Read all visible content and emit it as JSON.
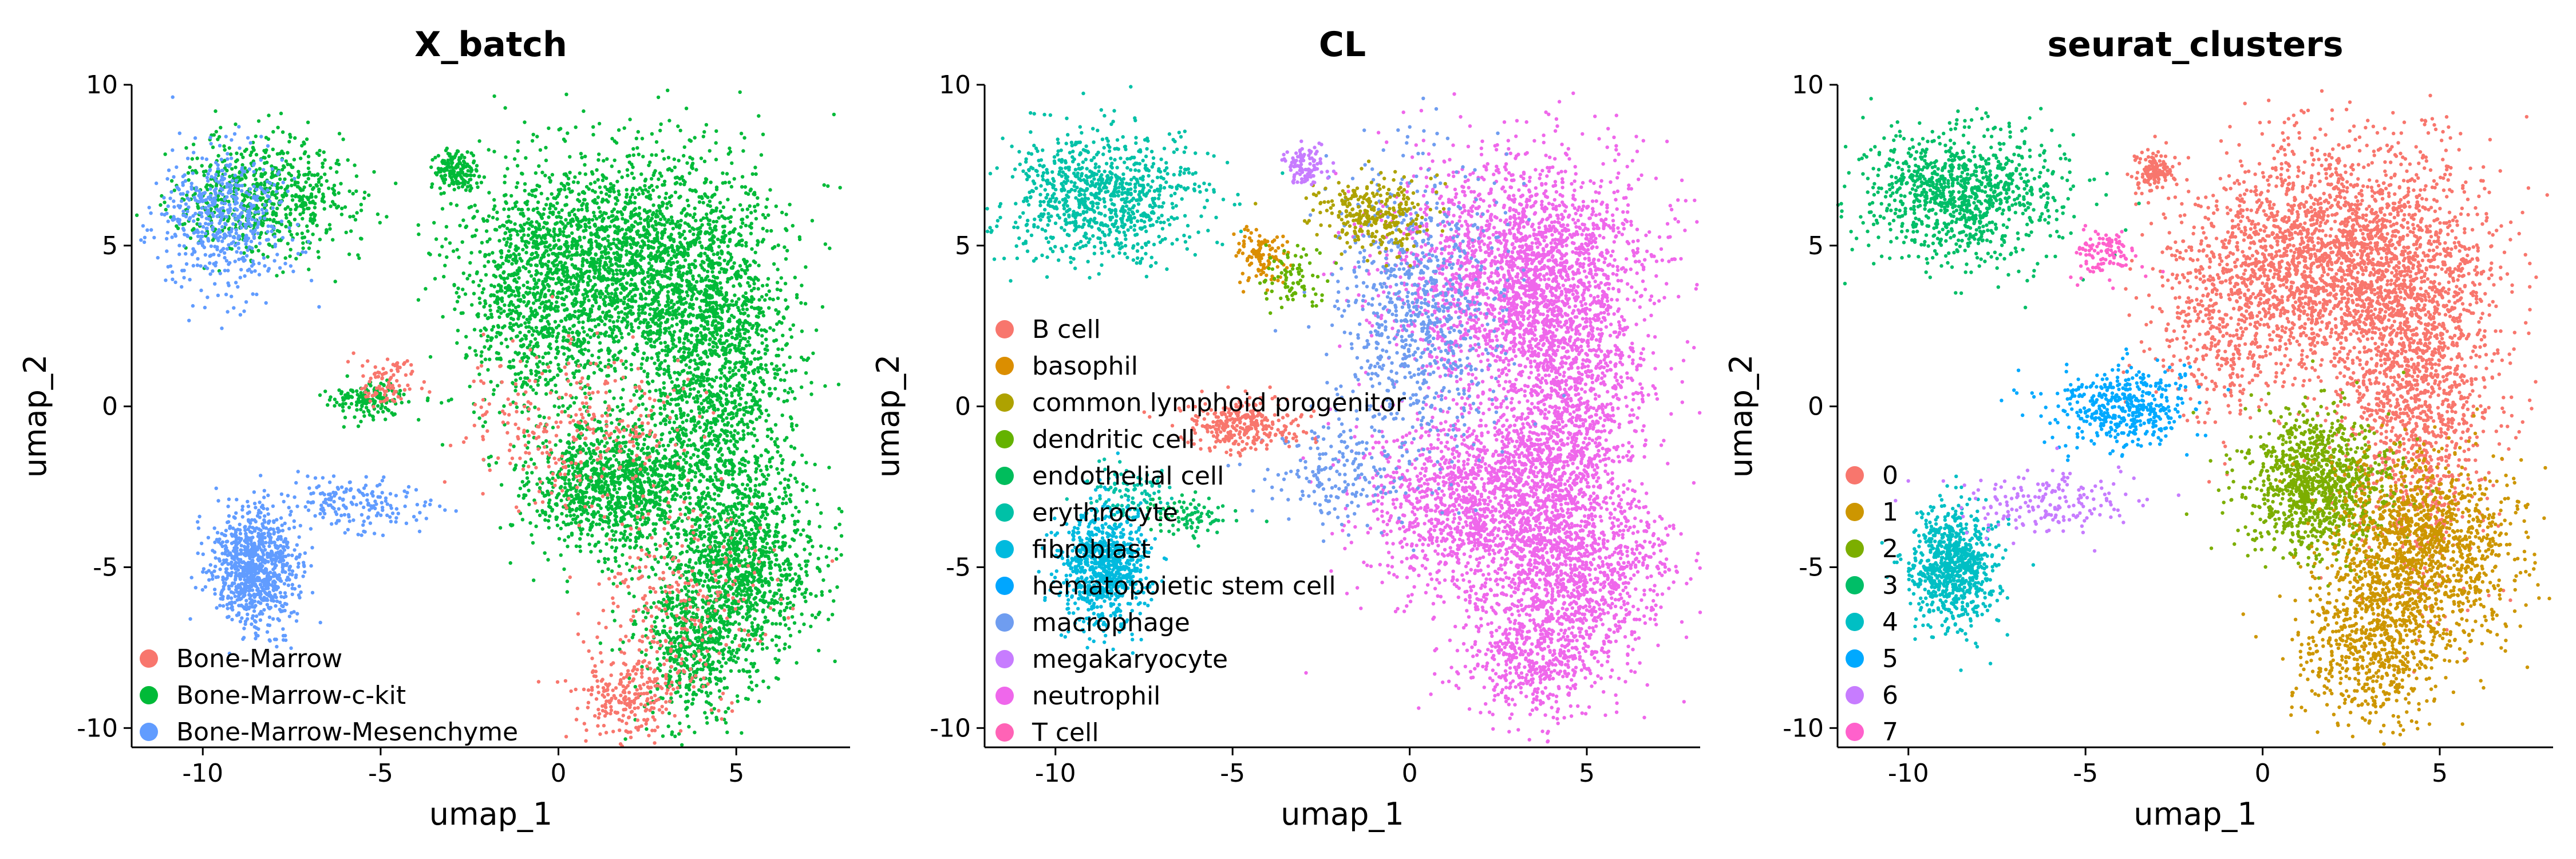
{
  "chart_data": [
    {
      "type": "scatter",
      "title": "X_batch",
      "xlabel": "umap_1",
      "ylabel": "umap_2",
      "xlim": [
        -12,
        8.2
      ],
      "ylim": [
        -10.6,
        10
      ],
      "xticks": [
        -10,
        -5,
        0,
        5
      ],
      "yticks": [
        -10,
        -5,
        0,
        5,
        10
      ],
      "xtick_labels": [
        "-10",
        "-5",
        "0",
        "5"
      ],
      "ytick_labels": [
        "-10",
        "-5",
        "0",
        "5",
        "10"
      ],
      "grid": false,
      "legend_position": "bottom-left",
      "legend": [
        {
          "name": "Bone-Marrow",
          "color": "#F8766D"
        },
        {
          "name": "Bone-Marrow-c-kit",
          "color": "#00BA38"
        },
        {
          "name": "Bone-Marrow-Mesenchyme",
          "color": "#619CFF"
        }
      ],
      "clusters": [
        {
          "color": "#00BA38",
          "x": 1.5,
          "y": 4.5,
          "sx": 2.0,
          "sy": 1.8,
          "n": 2200
        },
        {
          "color": "#00BA38",
          "x": 4.4,
          "y": 1.0,
          "sx": 1.1,
          "sy": 3.0,
          "n": 1700
        },
        {
          "color": "#00BA38",
          "x": 1.5,
          "y": -2.4,
          "sx": 1.2,
          "sy": 1.1,
          "n": 1100
        },
        {
          "color": "#00BA38",
          "x": 5.2,
          "y": -4.8,
          "sx": 1.1,
          "sy": 1.4,
          "n": 1000
        },
        {
          "color": "#00BA38",
          "x": 3.8,
          "y": -7.5,
          "sx": 0.9,
          "sy": 1.1,
          "n": 550
        },
        {
          "color": "#00BA38",
          "x": -0.8,
          "y": 3.0,
          "sx": 1.0,
          "sy": 2.0,
          "n": 500
        },
        {
          "color": "#00BA38",
          "x": -2.9,
          "y": 7.3,
          "sx": 0.3,
          "sy": 0.3,
          "n": 160
        },
        {
          "color": "#00BA38",
          "x": -8.3,
          "y": 6.6,
          "sx": 1.2,
          "sy": 0.9,
          "n": 700
        },
        {
          "color": "#00BA38",
          "x": -5.3,
          "y": 0.2,
          "sx": 0.5,
          "sy": 0.3,
          "n": 160
        },
        {
          "color": "#619CFF",
          "x": -9.5,
          "y": 5.8,
          "sx": 0.9,
          "sy": 1.1,
          "n": 550
        },
        {
          "color": "#619CFF",
          "x": -8.5,
          "y": -5.0,
          "sx": 0.6,
          "sy": 0.9,
          "n": 900
        },
        {
          "color": "#619CFF",
          "x": -5.8,
          "y": -3.0,
          "sx": 1.0,
          "sy": 0.4,
          "n": 180
        },
        {
          "color": "#F8766D",
          "x": 0.5,
          "y": -0.5,
          "sx": 1.5,
          "sy": 1.2,
          "n": 300
        },
        {
          "color": "#F8766D",
          "x": 2.0,
          "y": -9.0,
          "sx": 0.8,
          "sy": 0.7,
          "n": 250
        },
        {
          "color": "#F8766D",
          "x": -4.8,
          "y": 0.8,
          "sx": 0.4,
          "sy": 0.4,
          "n": 90
        },
        {
          "color": "#F8766D",
          "x": 3.5,
          "y": -6.0,
          "sx": 1.2,
          "sy": 1.5,
          "n": 250
        }
      ]
    },
    {
      "type": "scatter",
      "title": "CL",
      "xlabel": "umap_1",
      "ylabel": "umap_2",
      "xlim": [
        -12,
        8.2
      ],
      "ylim": [
        -10.6,
        10
      ],
      "xticks": [
        -10,
        -5,
        0,
        5
      ],
      "yticks": [
        -10,
        -5,
        0,
        5,
        10
      ],
      "xtick_labels": [
        "-10",
        "-5",
        "0",
        "5"
      ],
      "ytick_labels": [
        "-10",
        "-5",
        "0",
        "5",
        "10"
      ],
      "grid": false,
      "legend_position": "left",
      "legend": [
        {
          "name": "B cell",
          "color": "#F8766D"
        },
        {
          "name": "basophil",
          "color": "#DB8E00"
        },
        {
          "name": "common lymphoid progenitor",
          "color": "#AEA200"
        },
        {
          "name": "dendritic cell",
          "color": "#64B200"
        },
        {
          "name": "endothelial cell",
          "color": "#00BD5C"
        },
        {
          "name": "erythrocyte",
          "color": "#00C1A7"
        },
        {
          "name": "fibroblast",
          "color": "#00BADE"
        },
        {
          "name": "hematopoietic stem cell",
          "color": "#00A6FF"
        },
        {
          "name": "macrophage",
          "color": "#6F9DF0"
        },
        {
          "name": "megakaryocyte",
          "color": "#C77CFF"
        },
        {
          "name": "neutrophil",
          "color": "#EF67EB"
        },
        {
          "name": "T cell",
          "color": "#FF63B6"
        }
      ],
      "clusters": [
        {
          "color": "#EF67EB",
          "x": 3.0,
          "y": 4.2,
          "sx": 1.8,
          "sy": 1.8,
          "n": 2000
        },
        {
          "color": "#EF67EB",
          "x": 4.4,
          "y": 0.5,
          "sx": 1.1,
          "sy": 3.0,
          "n": 1500
        },
        {
          "color": "#EF67EB",
          "x": 2.0,
          "y": -3.0,
          "sx": 1.6,
          "sy": 1.5,
          "n": 1500
        },
        {
          "color": "#EF67EB",
          "x": 4.8,
          "y": -5.0,
          "sx": 1.3,
          "sy": 1.5,
          "n": 1000
        },
        {
          "color": "#EF67EB",
          "x": 3.5,
          "y": -7.8,
          "sx": 1.0,
          "sy": 1.0,
          "n": 500
        },
        {
          "color": "#6F9DF0",
          "x": 0.2,
          "y": 3.0,
          "sx": 1.2,
          "sy": 2.2,
          "n": 800
        },
        {
          "color": "#6F9DF0",
          "x": -2.0,
          "y": -2.0,
          "sx": 1.0,
          "sy": 0.8,
          "n": 200
        },
        {
          "color": "#AEA200",
          "x": -1.0,
          "y": 6.0,
          "sx": 0.8,
          "sy": 0.6,
          "n": 300
        },
        {
          "color": "#DB8E00",
          "x": -4.2,
          "y": 4.7,
          "sx": 0.4,
          "sy": 0.4,
          "n": 110
        },
        {
          "color": "#C77CFF",
          "x": -2.9,
          "y": 7.5,
          "sx": 0.3,
          "sy": 0.3,
          "n": 110
        },
        {
          "color": "#00C1A7",
          "x": -8.8,
          "y": 6.5,
          "sx": 1.4,
          "sy": 1.0,
          "n": 900
        },
        {
          "color": "#00C1A7",
          "x": -8.0,
          "y": -2.8,
          "sx": 0.7,
          "sy": 0.5,
          "n": 100
        },
        {
          "color": "#00BADE",
          "x": -8.6,
          "y": -5.0,
          "sx": 0.6,
          "sy": 0.9,
          "n": 800
        },
        {
          "color": "#F8766D",
          "x": -4.8,
          "y": -0.6,
          "sx": 0.8,
          "sy": 0.4,
          "n": 300
        },
        {
          "color": "#00BD5C",
          "x": -6.3,
          "y": -3.4,
          "sx": 0.6,
          "sy": 0.3,
          "n": 90
        },
        {
          "color": "#64B200",
          "x": -3.2,
          "y": 4.0,
          "sx": 0.5,
          "sy": 0.5,
          "n": 80
        }
      ]
    },
    {
      "type": "scatter",
      "title": "seurat_clusters",
      "xlabel": "umap_1",
      "ylabel": "umap_2",
      "xlim": [
        -12,
        8.2
      ],
      "ylim": [
        -10.6,
        10
      ],
      "xticks": [
        -10,
        -5,
        0,
        5
      ],
      "yticks": [
        -10,
        -5,
        0,
        5,
        10
      ],
      "xtick_labels": [
        "-10",
        "-5",
        "0",
        "5"
      ],
      "ytick_labels": [
        "-10",
        "-5",
        "0",
        "5",
        "10"
      ],
      "grid": false,
      "legend_position": "bottom-left",
      "legend": [
        {
          "name": "0",
          "color": "#F8766D"
        },
        {
          "name": "1",
          "color": "#CD9600"
        },
        {
          "name": "2",
          "color": "#7CAE00"
        },
        {
          "name": "3",
          "color": "#00BE67"
        },
        {
          "name": "4",
          "color": "#00BFC4"
        },
        {
          "name": "5",
          "color": "#00A9FF"
        },
        {
          "name": "6",
          "color": "#C77CFF"
        },
        {
          "name": "7",
          "color": "#FF61CC"
        }
      ],
      "clusters": [
        {
          "color": "#F8766D",
          "x": 2.0,
          "y": 4.5,
          "sx": 2.0,
          "sy": 1.8,
          "n": 2300
        },
        {
          "color": "#F8766D",
          "x": 4.4,
          "y": 1.0,
          "sx": 1.1,
          "sy": 3.0,
          "n": 1500
        },
        {
          "color": "#F8766D",
          "x": -1.0,
          "y": 2.5,
          "sx": 1.0,
          "sy": 1.6,
          "n": 400
        },
        {
          "color": "#F8766D",
          "x": -3.0,
          "y": 7.3,
          "sx": 0.3,
          "sy": 0.3,
          "n": 130
        },
        {
          "color": "#7CAE00",
          "x": 1.5,
          "y": -2.5,
          "sx": 1.0,
          "sy": 1.1,
          "n": 1100
        },
        {
          "color": "#CD9600",
          "x": 4.5,
          "y": -4.5,
          "sx": 1.3,
          "sy": 1.4,
          "n": 1300
        },
        {
          "color": "#CD9600",
          "x": 3.0,
          "y": -7.5,
          "sx": 1.0,
          "sy": 1.2,
          "n": 650
        },
        {
          "color": "#00BE67",
          "x": -8.5,
          "y": 6.6,
          "sx": 1.4,
          "sy": 1.0,
          "n": 1000
        },
        {
          "color": "#00BFC4",
          "x": -8.7,
          "y": -5.0,
          "sx": 0.6,
          "sy": 0.9,
          "n": 800
        },
        {
          "color": "#00A9FF",
          "x": -4.0,
          "y": 0.0,
          "sx": 1.0,
          "sy": 0.6,
          "n": 450
        },
        {
          "color": "#C77CFF",
          "x": -6.0,
          "y": -3.0,
          "sx": 1.2,
          "sy": 0.5,
          "n": 180
        },
        {
          "color": "#FF61CC",
          "x": -4.5,
          "y": 4.8,
          "sx": 0.4,
          "sy": 0.4,
          "n": 110
        }
      ]
    }
  ]
}
